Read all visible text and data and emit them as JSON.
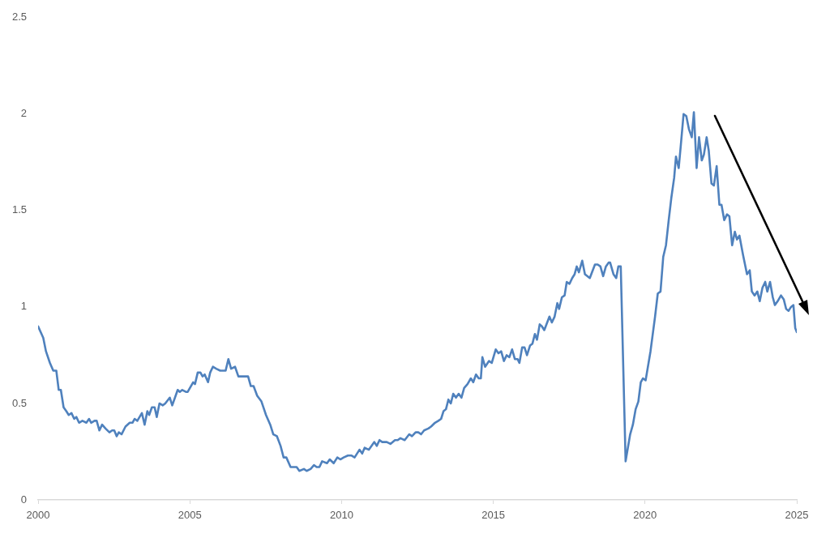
{
  "chart_data": {
    "type": "line",
    "color": "#4f81bd",
    "marker": "none",
    "x": [
      2000.0,
      2000.17,
      2000.26,
      2000.39,
      2000.5,
      2000.6,
      2000.68,
      2000.75,
      2000.84,
      2000.93,
      2001.01,
      2001.1,
      2001.19,
      2001.26,
      2001.35,
      2001.46,
      2001.59,
      2001.68,
      2001.75,
      2001.86,
      2001.93,
      2002.02,
      2002.11,
      2002.22,
      2002.35,
      2002.44,
      2002.51,
      2002.59,
      2002.66,
      2002.75,
      2002.88,
      2003.02,
      2003.11,
      2003.18,
      2003.27,
      2003.42,
      2003.51,
      2003.6,
      2003.66,
      2003.75,
      2003.84,
      2003.91,
      2004.0,
      2004.11,
      2004.19,
      2004.34,
      2004.42,
      2004.6,
      2004.67,
      2004.75,
      2004.87,
      2004.93,
      2005.11,
      2005.17,
      2005.26,
      2005.35,
      2005.42,
      2005.49,
      2005.6,
      2005.67,
      2005.76,
      2005.87,
      2006.0,
      2006.12,
      2006.18,
      2006.27,
      2006.36,
      2006.49,
      2006.6,
      2006.71,
      2006.8,
      2006.92,
      2007.01,
      2007.1,
      2007.22,
      2007.36,
      2007.51,
      2007.65,
      2007.75,
      2007.87,
      2007.99,
      2008.09,
      2008.18,
      2008.32,
      2008.43,
      2008.52,
      2008.61,
      2008.76,
      2008.85,
      2008.98,
      2009.09,
      2009.18,
      2009.27,
      2009.36,
      2009.52,
      2009.61,
      2009.74,
      2009.86,
      2009.96,
      2010.07,
      2010.21,
      2010.32,
      2010.43,
      2010.59,
      2010.68,
      2010.76,
      2010.9,
      2011.08,
      2011.16,
      2011.25,
      2011.34,
      2011.49,
      2011.61,
      2011.76,
      2011.85,
      2011.94,
      2012.08,
      2012.23,
      2012.32,
      2012.44,
      2012.53,
      2012.62,
      2012.72,
      2012.86,
      2012.95,
      2013.08,
      2013.19,
      2013.28,
      2013.36,
      2013.44,
      2013.52,
      2013.6,
      2013.68,
      2013.77,
      2013.86,
      2013.95,
      2014.04,
      2014.15,
      2014.26,
      2014.34,
      2014.43,
      2014.52,
      2014.59,
      2014.64,
      2014.73,
      2014.86,
      2014.95,
      2015.08,
      2015.17,
      2015.26,
      2015.35,
      2015.44,
      2015.53,
      2015.62,
      2015.71,
      2015.8,
      2015.86,
      2015.95,
      2016.03,
      2016.11,
      2016.21,
      2016.29,
      2016.37,
      2016.44,
      2016.53,
      2016.6,
      2016.68,
      2016.85,
      2016.93,
      2017.02,
      2017.11,
      2017.17,
      2017.26,
      2017.35,
      2017.42,
      2017.51,
      2017.6,
      2017.68,
      2017.75,
      2017.82,
      2017.93,
      2018.02,
      2018.18,
      2018.35,
      2018.44,
      2018.53,
      2018.62,
      2018.71,
      2018.8,
      2018.85,
      2018.96,
      2019.05,
      2019.12,
      2019.2,
      2019.36,
      2019.51,
      2019.6,
      2019.69,
      2019.78,
      2019.86,
      2019.93,
      2020.02,
      2020.18,
      2020.33,
      2020.42,
      2020.51,
      2020.6,
      2020.69,
      2020.78,
      2020.87,
      2020.96,
      2021.02,
      2021.11,
      2021.18,
      2021.27,
      2021.36,
      2021.45,
      2021.54,
      2021.61,
      2021.7,
      2021.78,
      2021.87,
      2021.94,
      2022.03,
      2022.1,
      2022.19,
      2022.27,
      2022.36,
      2022.45,
      2022.52,
      2022.61,
      2022.7,
      2022.78,
      2022.87,
      2022.96,
      2023.03,
      2023.11,
      2023.23,
      2023.36,
      2023.45,
      2023.52,
      2023.61,
      2023.7,
      2023.78,
      2023.87,
      2023.96,
      2024.03,
      2024.12,
      2024.21,
      2024.28,
      2024.37,
      2024.48,
      2024.57,
      2024.65,
      2024.73,
      2024.81,
      2024.89,
      2024.95,
      2025.0
    ],
    "values": [
      0.9,
      0.84,
      0.77,
      0.71,
      0.67,
      0.67,
      0.57,
      0.57,
      0.48,
      0.46,
      0.44,
      0.45,
      0.42,
      0.43,
      0.4,
      0.41,
      0.4,
      0.42,
      0.4,
      0.41,
      0.41,
      0.36,
      0.39,
      0.37,
      0.35,
      0.36,
      0.36,
      0.33,
      0.35,
      0.34,
      0.38,
      0.4,
      0.4,
      0.42,
      0.41,
      0.45,
      0.39,
      0.46,
      0.44,
      0.48,
      0.48,
      0.43,
      0.5,
      0.49,
      0.5,
      0.53,
      0.49,
      0.57,
      0.56,
      0.57,
      0.56,
      0.56,
      0.61,
      0.6,
      0.66,
      0.66,
      0.64,
      0.65,
      0.61,
      0.66,
      0.69,
      0.68,
      0.67,
      0.67,
      0.67,
      0.73,
      0.68,
      0.69,
      0.64,
      0.64,
      0.64,
      0.64,
      0.59,
      0.59,
      0.54,
      0.51,
      0.44,
      0.39,
      0.34,
      0.33,
      0.28,
      0.22,
      0.22,
      0.17,
      0.17,
      0.17,
      0.15,
      0.16,
      0.15,
      0.16,
      0.18,
      0.17,
      0.17,
      0.2,
      0.19,
      0.21,
      0.19,
      0.22,
      0.21,
      0.22,
      0.23,
      0.23,
      0.22,
      0.26,
      0.24,
      0.27,
      0.26,
      0.3,
      0.28,
      0.31,
      0.3,
      0.3,
      0.29,
      0.31,
      0.31,
      0.32,
      0.31,
      0.34,
      0.33,
      0.35,
      0.35,
      0.34,
      0.36,
      0.37,
      0.38,
      0.4,
      0.41,
      0.42,
      0.46,
      0.47,
      0.52,
      0.5,
      0.55,
      0.53,
      0.55,
      0.53,
      0.58,
      0.6,
      0.63,
      0.61,
      0.65,
      0.63,
      0.63,
      0.74,
      0.69,
      0.72,
      0.71,
      0.78,
      0.76,
      0.77,
      0.72,
      0.75,
      0.74,
      0.78,
      0.73,
      0.73,
      0.71,
      0.79,
      0.79,
      0.75,
      0.8,
      0.81,
      0.86,
      0.83,
      0.91,
      0.9,
      0.88,
      0.95,
      0.92,
      0.95,
      1.02,
      0.99,
      1.05,
      1.06,
      1.13,
      1.12,
      1.15,
      1.17,
      1.21,
      1.18,
      1.24,
      1.17,
      1.15,
      1.22,
      1.22,
      1.21,
      1.16,
      1.21,
      1.23,
      1.23,
      1.17,
      1.15,
      1.21,
      1.21,
      0.2,
      0.34,
      0.39,
      0.47,
      0.51,
      0.61,
      0.63,
      0.62,
      0.77,
      0.95,
      1.07,
      1.08,
      1.26,
      1.32,
      1.45,
      1.57,
      1.67,
      1.78,
      1.72,
      1.84,
      2.0,
      1.99,
      1.92,
      1.88,
      2.01,
      1.72,
      1.88,
      1.76,
      1.79,
      1.88,
      1.81,
      1.64,
      1.63,
      1.73,
      1.53,
      1.53,
      1.45,
      1.48,
      1.47,
      1.32,
      1.39,
      1.35,
      1.37,
      1.27,
      1.17,
      1.19,
      1.08,
      1.06,
      1.08,
      1.03,
      1.1,
      1.13,
      1.08,
      1.13,
      1.05,
      1.01,
      1.03,
      1.06,
      1.04,
      0.99,
      0.98,
      1.0,
      1.01,
      0.89,
      0.87
    ],
    "xlim": [
      2000,
      2025
    ],
    "xticks": [
      2000,
      2005,
      2010,
      2015,
      2020,
      2025
    ],
    "ylim": [
      0,
      2.5
    ],
    "yticks": [
      0,
      0.5,
      1,
      1.5,
      2,
      2.5
    ]
  }
}
